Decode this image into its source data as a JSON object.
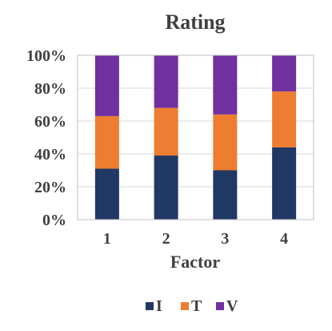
{
  "chart_data": {
    "type": "bar",
    "stacked": true,
    "title": "Rating",
    "xlabel": "Factor",
    "ylabel": "",
    "categories": [
      "1",
      "2",
      "3",
      "4"
    ],
    "ylim": [
      0,
      100
    ],
    "y_ticks": [
      "0%",
      "20%",
      "40%",
      "60%",
      "80%",
      "100%"
    ],
    "y_tick_values": [
      0,
      20,
      40,
      60,
      80,
      100
    ],
    "grid": true,
    "legend_position": "bottom",
    "series": [
      {
        "name": "I",
        "color": "#203864",
        "values": [
          31,
          39,
          30,
          44
        ]
      },
      {
        "name": "T",
        "color": "#ED7D31",
        "values": [
          32,
          29,
          34,
          34
        ]
      },
      {
        "name": "V",
        "color": "#7030A0",
        "values": [
          37,
          32,
          36,
          22
        ]
      }
    ]
  }
}
